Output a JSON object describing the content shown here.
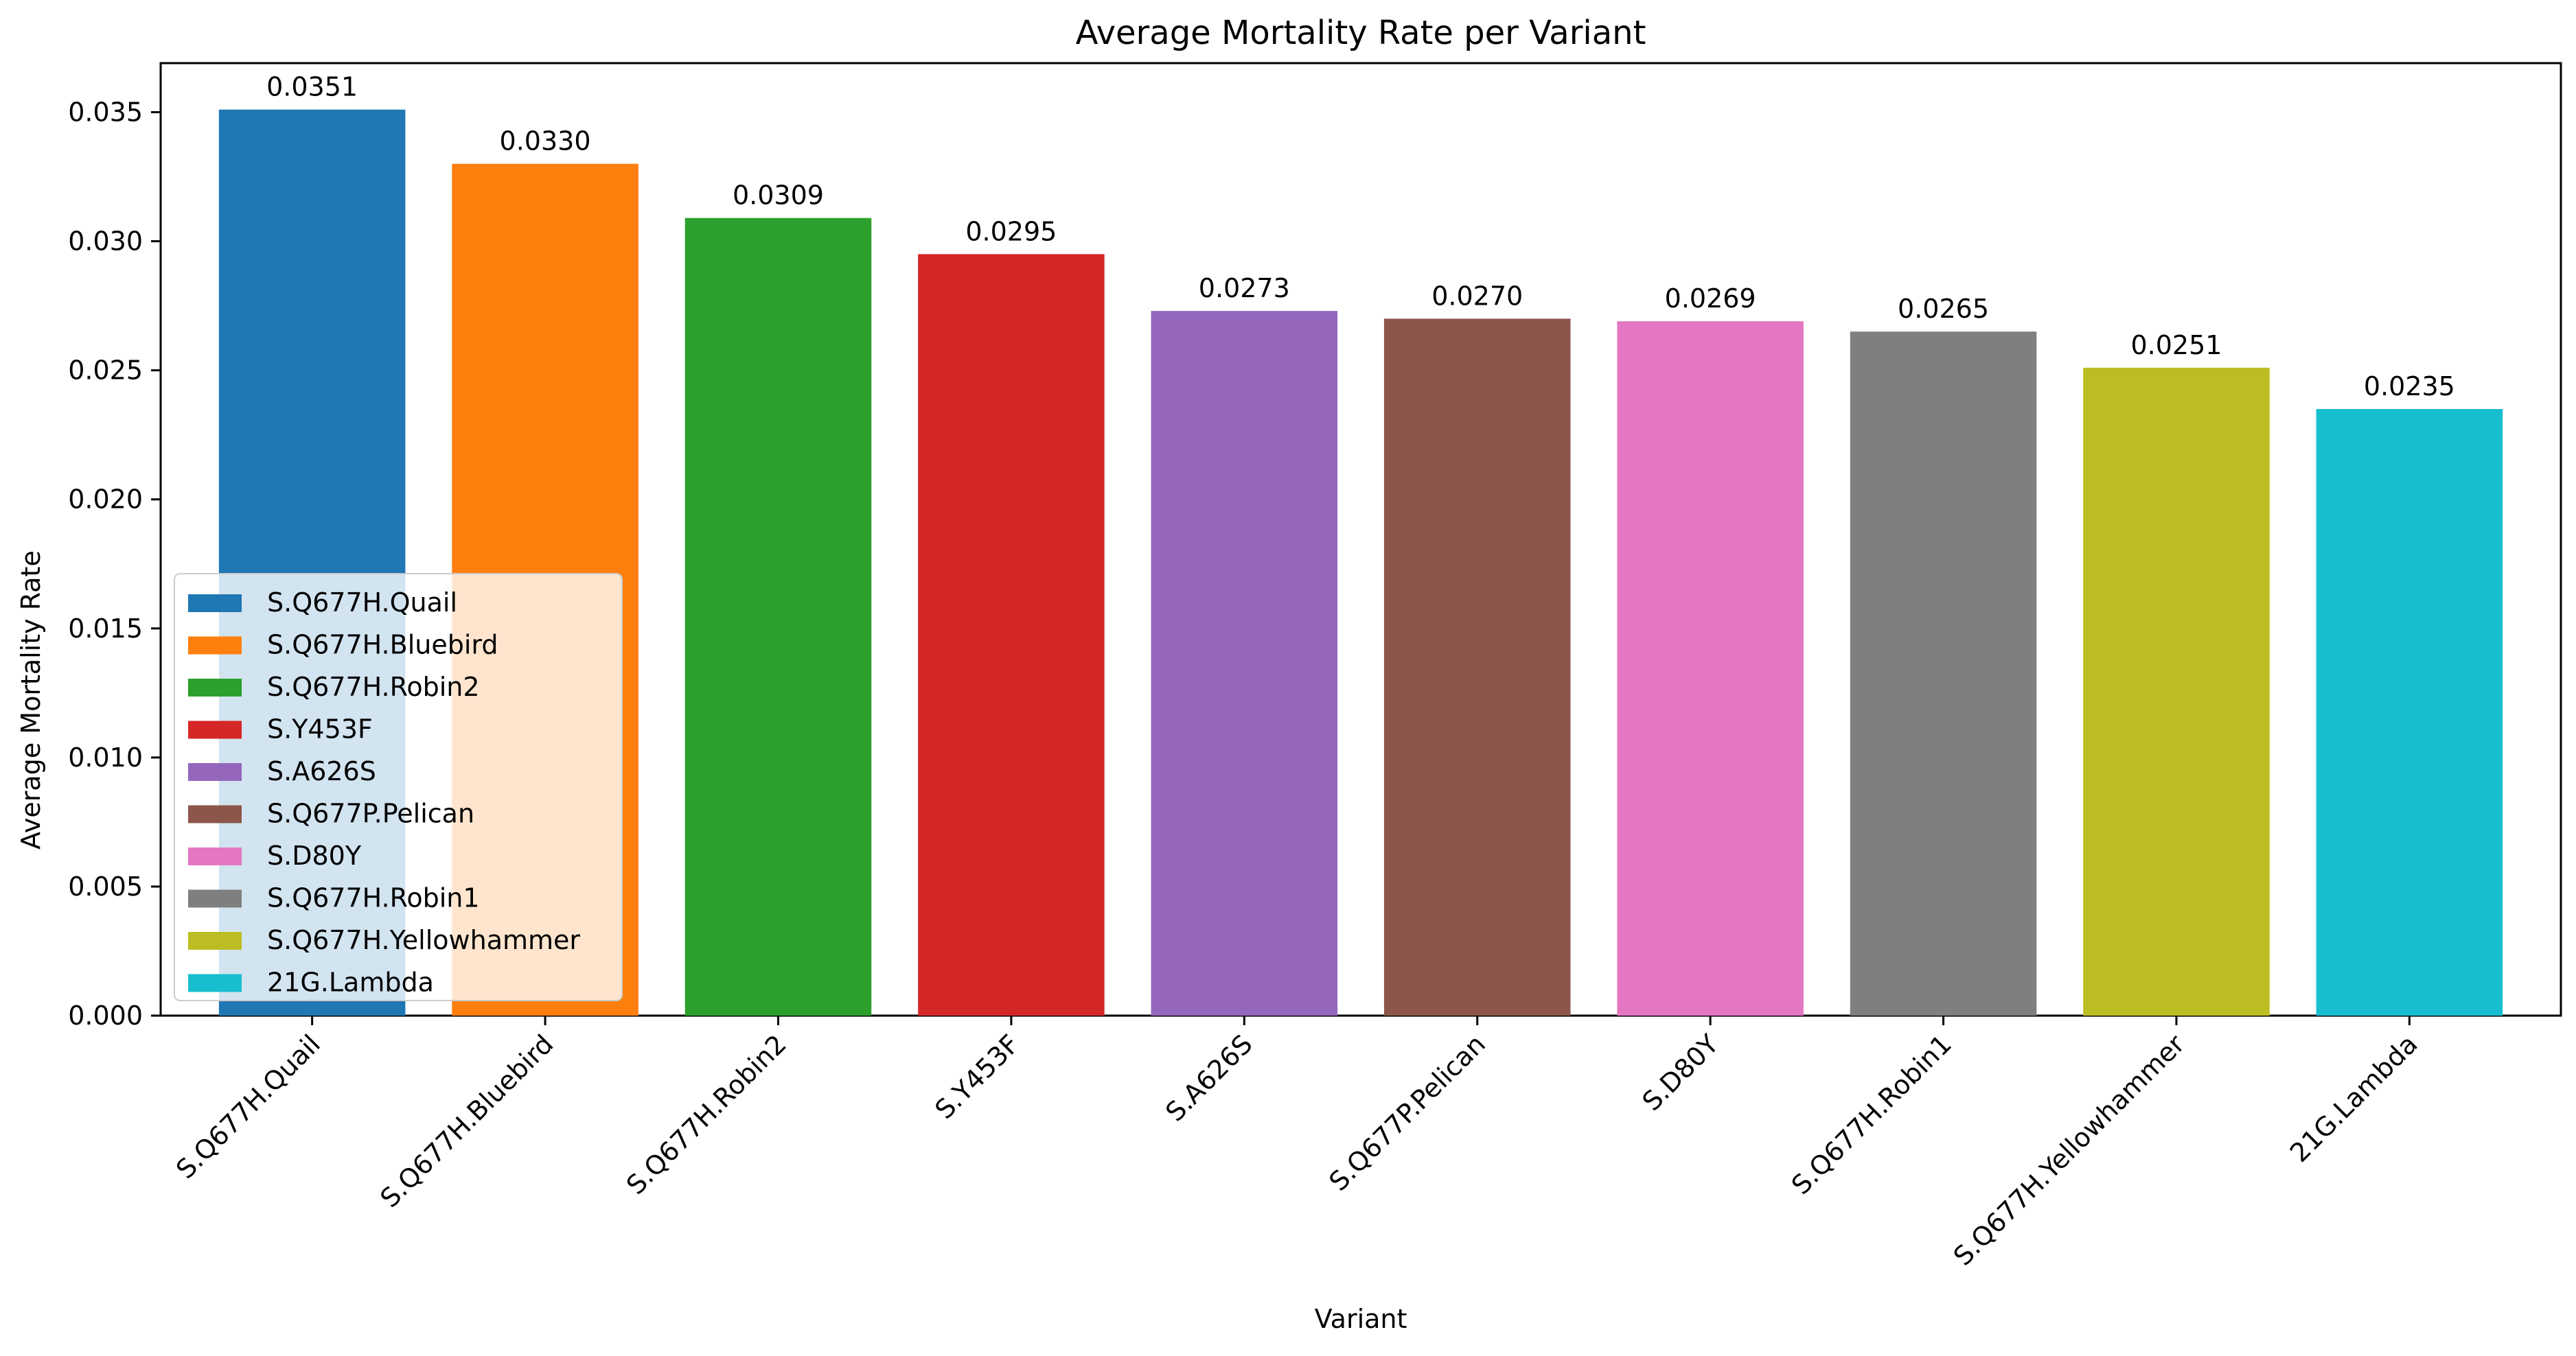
{
  "chart_data": {
    "type": "bar",
    "title": "Average Mortality Rate per Variant",
    "xlabel": "Variant",
    "ylabel": "Average Mortality Rate",
    "categories": [
      "S.Q677H.Quail",
      "S.Q677H.Bluebird",
      "S.Q677H.Robin2",
      "S.Y453F",
      "S.A626S",
      "S.Q677P.Pelican",
      "S.D80Y",
      "S.Q677H.Robin1",
      "S.Q677H.Yellowhammer",
      "21G.Lambda"
    ],
    "values": [
      0.0351,
      0.033,
      0.0309,
      0.0295,
      0.0273,
      0.027,
      0.0269,
      0.0265,
      0.0251,
      0.0235
    ],
    "value_labels": [
      "0.0351",
      "0.0330",
      "0.0309",
      "0.0295",
      "0.0273",
      "0.0270",
      "0.0269",
      "0.0265",
      "0.0251",
      "0.0235"
    ],
    "colors": [
      "#1f77b4",
      "#ff7f0e",
      "#2ca02c",
      "#d62728",
      "#9467bd",
      "#8c564b",
      "#e377c2",
      "#7f7f7f",
      "#bcbd22",
      "#17becf"
    ],
    "ylim": [
      0,
      0.0369
    ],
    "yticks": [
      0.0,
      0.005,
      0.01,
      0.015,
      0.02,
      0.025,
      0.03,
      0.035
    ],
    "ytick_labels": [
      "0.000",
      "0.005",
      "0.010",
      "0.015",
      "0.020",
      "0.025",
      "0.030",
      "0.035"
    ],
    "xtick_rotation": 45,
    "grid": false,
    "legend": {
      "placement": "lower-left",
      "entries": [
        "S.Q677H.Quail",
        "S.Q677H.Bluebird",
        "S.Q677H.Robin2",
        "S.Y453F",
        "S.A626S",
        "S.Q677P.Pelican",
        "S.D80Y",
        "S.Q677H.Robin1",
        "S.Q677H.Yellowhammer",
        "21G.Lambda"
      ]
    }
  }
}
